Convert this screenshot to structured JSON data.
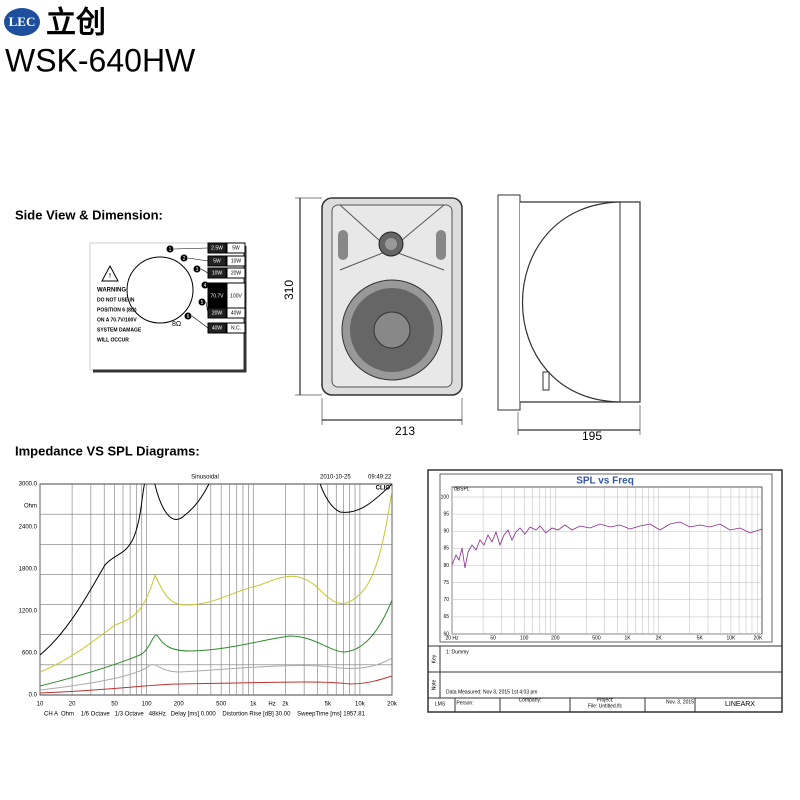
{
  "header": {
    "logo": "LEC",
    "brand": "立创",
    "model": "WSK-640HW"
  },
  "side_view": {
    "heading": "Side View & Dimension:",
    "wiring": {
      "numbers": [
        "1",
        "2",
        "3",
        "4",
        "5",
        "6"
      ],
      "taps_70v": [
        "2.5W",
        "5W",
        "10W",
        "70.7V",
        "20W",
        "40W"
      ],
      "taps_100v": [
        "5W",
        "10W",
        "20W",
        "100V",
        "40W",
        "N.C."
      ],
      "warning": [
        "WARNING:",
        "DO NOT USE IN",
        "POSITION 6 (8Ω)",
        "ON A 70.7V/100V",
        "SYSTEM DAMAGE",
        "WILL OCCUR"
      ],
      "impedance": "8Ω"
    },
    "dimensions": {
      "height": "310",
      "width": "213",
      "depth": "195"
    }
  },
  "diagrams": {
    "heading": "Impedance VS SPL Diagrams:",
    "impedance": {
      "mode": "Sinusoidal",
      "date": "2010-10-25",
      "time": "09:49:22",
      "brand": "CLIO",
      "yticks": [
        "3000.0",
        "Ohm",
        "2400.0",
        "1800.0",
        "1200.0",
        "600.0",
        "0.0"
      ],
      "xticks": [
        "10",
        "20",
        "50",
        "100",
        "200",
        "500",
        "1k",
        "Hz",
        "2k",
        "5k",
        "10k",
        "20k"
      ],
      "footer": "CH A  Ohm    1/6 Octave   1/3 Octave   48kHz   Delay [ms] 0.000    Distortion Rise [dB] 30.00    SweepTime [ms] 1957.81"
    },
    "spl": {
      "title": "SPL vs Freq",
      "unit": "dBSPL",
      "yticks": [
        "100",
        "95",
        "90",
        "85",
        "80",
        "75",
        "70",
        "65",
        "60"
      ],
      "xticks": [
        "20 Hz",
        "50",
        "100",
        "200",
        "500",
        "1K",
        "2K",
        "5K",
        "10K",
        "20K"
      ],
      "key_label": "Key",
      "note_label": "Note",
      "key": "1: Dummy",
      "note": "Data Measured: Nov 3, 2015  1st  4:03 pm",
      "footer": [
        "LMS",
        "Person:",
        "Company:",
        "Project:",
        "File: Untitled.lfc",
        "Nov. 3, 2015",
        "LINEARX"
      ]
    }
  }
}
